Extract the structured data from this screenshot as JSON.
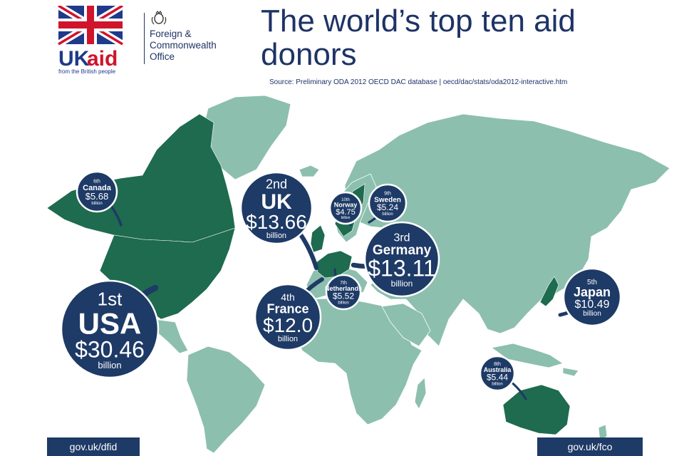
{
  "header": {
    "title": "The world’s top ten aid donors",
    "source": "Source: Preliminary ODA 2012 OECD DAC database | oecd/dac/stats/oda2012-interactive.htm"
  },
  "logos": {
    "ukaid": {
      "wordmark_uk": "UK",
      "wordmark_aid": "aid",
      "tagline": "from the British people"
    },
    "fco": {
      "line1": "Foreign &",
      "line2": "Commonwealth",
      "line3": "Office"
    }
  },
  "colors": {
    "navy": "#1e3366",
    "bubble": "#1e3a66",
    "donor_country": "#1e6b4f",
    "land": "#8cbfae",
    "ocean": "#ffffff",
    "ukaid_red": "#cf142b"
  },
  "donors": [
    {
      "rank": "1st",
      "country": "USA",
      "amount": "$30.46",
      "unit": "billion"
    },
    {
      "rank": "2nd",
      "country": "UK",
      "amount": "$13.66",
      "unit": "billion"
    },
    {
      "rank": "3rd",
      "country": "Germany",
      "amount": "$13.11",
      "unit": "billion"
    },
    {
      "rank": "4th",
      "country": "France",
      "amount": "$12.0",
      "unit": "billion"
    },
    {
      "rank": "5th",
      "country": "Japan",
      "amount": "$10.49",
      "unit": "billion"
    },
    {
      "rank": "6th",
      "country": "Canada",
      "amount": "$5.68",
      "unit": "billion"
    },
    {
      "rank": "7th",
      "country": "Netherlands",
      "amount": "$5.52",
      "unit": "billion"
    },
    {
      "rank": "8th",
      "country": "Australia",
      "amount": "$5.44",
      "unit": "billion"
    },
    {
      "rank": "9th",
      "country": "Sweden",
      "amount": "$5.24",
      "unit": "billion"
    },
    {
      "rank": "10th",
      "country": "Norway",
      "amount": "$4.75",
      "unit": "billion"
    }
  ],
  "footer": {
    "left_link": "gov.uk/dfid",
    "right_link": "gov.uk/fco"
  }
}
